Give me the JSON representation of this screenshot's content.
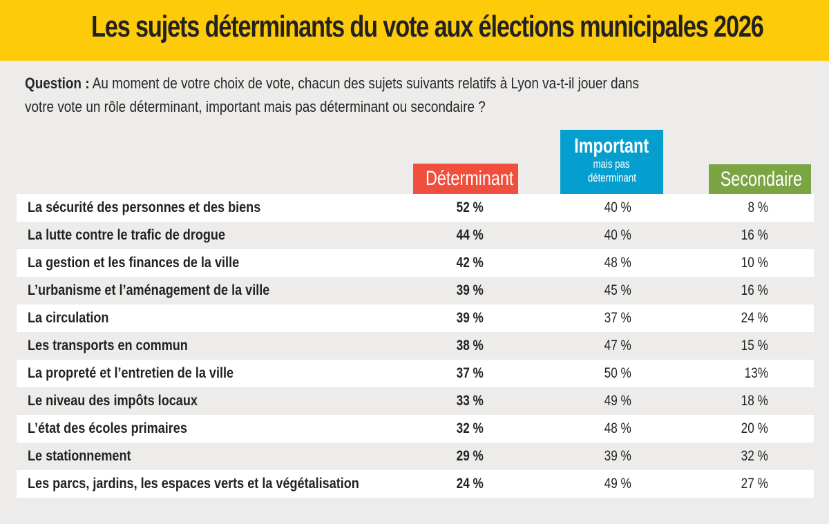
{
  "header": {
    "title": "Les sujets déterminants du vote aux élections municipales 2026"
  },
  "question": {
    "label": "Question :",
    "text": "Au moment de votre choix de vote, chacun des sujets suivants relatifs à Lyon va-t-il jouer dans",
    "text2": "votre vote un rôle déterminant, important mais pas déterminant ou secondaire ?"
  },
  "colors": {
    "banner": "#fecb0b",
    "determinant": "#f04f3d",
    "important": "#049fce",
    "secondaire": "#7ba543"
  },
  "columns": {
    "determinant": "Déterminant",
    "important_l1": "Important",
    "important_l2": "mais pas",
    "important_l3": "déterminant",
    "secondaire": "Secondaire"
  },
  "chart_data": {
    "type": "table",
    "title": "Les sujets déterminants du vote aux élections municipales 2026",
    "columns": [
      "Déterminant",
      "Important mais pas déterminant",
      "Secondaire"
    ],
    "categories": [
      "La sécurité des personnes et des biens",
      "La lutte contre le trafic de drogue",
      "La gestion et les finances de la ville",
      "L’urbanisme et l’aménagement de la ville",
      "La circulation",
      "Les transports en commun",
      "La propreté et l’entretien de la ville",
      "Le niveau des impôts locaux",
      "L’état des écoles primaires",
      "Le stationnement",
      "Les parcs, jardins, les espaces verts et la végétalisation"
    ],
    "series": [
      {
        "name": "Déterminant",
        "values": [
          52,
          44,
          42,
          39,
          39,
          38,
          37,
          33,
          32,
          29,
          24
        ]
      },
      {
        "name": "Important mais pas déterminant",
        "values": [
          40,
          40,
          48,
          45,
          37,
          47,
          50,
          49,
          48,
          39,
          49
        ]
      },
      {
        "name": "Secondaire",
        "values": [
          8,
          16,
          10,
          16,
          24,
          15,
          13,
          18,
          20,
          32,
          27
        ]
      }
    ],
    "rows": [
      {
        "label": "La sécurité des personnes et des biens",
        "det": "52 %",
        "imp": "40 %",
        "sec": "8 %"
      },
      {
        "label": "La lutte contre le trafic de drogue",
        "det": "44 %",
        "imp": "40 %",
        "sec": "16 %"
      },
      {
        "label": "La gestion et les finances de la ville",
        "det": "42 %",
        "imp": "48 %",
        "sec": "10 %"
      },
      {
        "label": "L’urbanisme et l’aménagement de la ville",
        "det": "39 %",
        "imp": "45 %",
        "sec": "16 %"
      },
      {
        "label": "La circulation",
        "det": "39 %",
        "imp": "37 %",
        "sec": "24 %"
      },
      {
        "label": "Les transports en commun",
        "det": "38 %",
        "imp": "47 %",
        "sec": "15 %"
      },
      {
        "label": "La propreté et l’entretien de la ville",
        "det": "37 %",
        "imp": "50 %",
        "sec": "13%"
      },
      {
        "label": "Le niveau des impôts locaux",
        "det": "33 %",
        "imp": "49 %",
        "sec": "18 %"
      },
      {
        "label": "L’état des écoles primaires",
        "det": "32 %",
        "imp": "48 %",
        "sec": "20 %"
      },
      {
        "label": "Le stationnement",
        "det": "29 %",
        "imp": "39 %",
        "sec": "32 %"
      },
      {
        "label": "Les parcs, jardins, les espaces verts et la végétalisation",
        "det": "24 %",
        "imp": "49 %",
        "sec": "27 %"
      }
    ],
    "unit": "%"
  }
}
